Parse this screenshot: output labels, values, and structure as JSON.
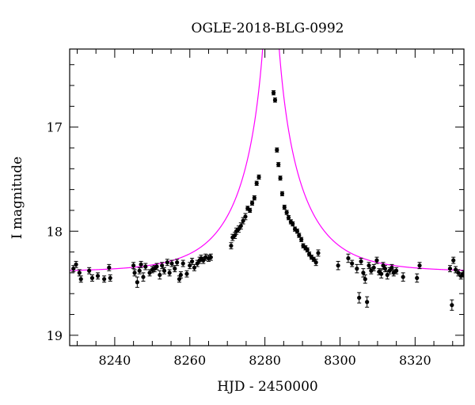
{
  "chart_data": {
    "type": "scatter",
    "title": "OGLE-2018-BLG-0992",
    "xlabel": "HJD - 2450000",
    "ylabel": "I magnitude",
    "xlim": [
      8228,
      8333
    ],
    "ylim": [
      19.1,
      16.25
    ],
    "y_inverted": true,
    "grid": false,
    "x_ticks": [
      8240,
      8260,
      8280,
      8300,
      8320
    ],
    "y_ticks": [
      17,
      18,
      19
    ],
    "colors": {
      "model": "#ff00ff",
      "points": "#000000",
      "axes": "#000000"
    },
    "model": {
      "type": "line",
      "baseline_mag": 18.39,
      "t0": 8281.6,
      "u0": 0.025,
      "tE": 16
    },
    "series": [
      {
        "x": [
          8229.0,
          8229.7,
          8230.6,
          8231.0,
          8233.2,
          8234.0,
          8235.5,
          8237.2,
          8238.5,
          8238.8,
          8245.0,
          8245.3,
          8246.0,
          8246.6,
          8247.0,
          8247.6,
          8248.2,
          8249.3,
          8250.0,
          8250.6,
          8251.2,
          8252.0,
          8252.6,
          8253.2,
          8254.0,
          8254.6,
          8255.2,
          8256.0,
          8256.6,
          8257.2,
          8257.6,
          8258.2,
          8259.2,
          8260.0,
          8260.6,
          8261.2,
          8262.0,
          8262.6,
          8263.0,
          8263.6,
          8264.2,
          8265.0,
          8265.6,
          8271.0,
          8271.4,
          8272.0,
          8272.4,
          8273.0,
          8273.6,
          8274.2,
          8274.8,
          8275.4,
          8276.0,
          8276.6,
          8277.2,
          8277.8,
          8278.4,
          8282.3,
          8282.7,
          8283.2,
          8283.6,
          8284.1,
          8284.6,
          8285.2,
          8285.8,
          8286.3,
          8286.9,
          8287.4,
          8288.0,
          8288.6,
          8289.1,
          8289.7,
          8290.2,
          8290.8,
          8291.3,
          8291.8,
          8292.4,
          8293.0,
          8293.6,
          8294.2,
          8299.5,
          8302.2,
          8303.2,
          8304.5,
          8305.1,
          8305.6,
          8306.2,
          8306.7,
          8307.2,
          8307.7,
          8308.3,
          8309.0,
          8309.8,
          8310.4,
          8311.0,
          8311.5,
          8312.0,
          8312.6,
          8313.2,
          8313.8,
          8314.3,
          8315.0,
          8316.8,
          8320.5,
          8321.2,
          8329.3,
          8329.8,
          8330.2,
          8330.8,
          8331.5,
          8332.2,
          8332.8
        ],
        "y": [
          18.36,
          18.32,
          18.4,
          18.46,
          18.38,
          18.45,
          18.43,
          18.46,
          18.35,
          18.45,
          18.33,
          18.4,
          18.49,
          18.38,
          18.32,
          18.44,
          18.34,
          18.4,
          18.37,
          18.36,
          18.34,
          18.42,
          18.33,
          18.38,
          18.3,
          18.4,
          18.31,
          18.36,
          18.3,
          18.46,
          18.42,
          18.31,
          18.41,
          18.33,
          18.29,
          18.35,
          18.31,
          18.28,
          18.26,
          18.28,
          18.25,
          18.26,
          18.25,
          18.14,
          18.06,
          18.04,
          18.0,
          17.98,
          17.95,
          17.9,
          17.86,
          17.78,
          17.8,
          17.73,
          17.68,
          17.54,
          17.48,
          16.67,
          16.74,
          17.22,
          17.36,
          17.49,
          17.64,
          17.77,
          17.82,
          17.87,
          17.91,
          17.93,
          17.98,
          18.0,
          18.04,
          18.08,
          18.14,
          18.16,
          18.18,
          18.22,
          18.25,
          18.27,
          18.3,
          18.21,
          18.33,
          18.26,
          18.31,
          18.36,
          18.64,
          18.29,
          18.4,
          18.46,
          18.68,
          18.33,
          18.38,
          18.35,
          18.28,
          18.39,
          18.41,
          18.33,
          18.36,
          18.42,
          18.38,
          18.35,
          18.4,
          18.38,
          18.44,
          18.45,
          18.33,
          18.36,
          18.71,
          18.28,
          18.37,
          18.4,
          18.43,
          18.41
        ],
        "err": [
          0.03,
          0.03,
          0.03,
          0.03,
          0.03,
          0.03,
          0.03,
          0.03,
          0.03,
          0.03,
          0.03,
          0.03,
          0.05,
          0.03,
          0.03,
          0.04,
          0.03,
          0.03,
          0.03,
          0.03,
          0.03,
          0.04,
          0.03,
          0.03,
          0.03,
          0.03,
          0.03,
          0.03,
          0.03,
          0.03,
          0.03,
          0.03,
          0.03,
          0.03,
          0.03,
          0.03,
          0.03,
          0.03,
          0.03,
          0.03,
          0.03,
          0.03,
          0.03,
          0.03,
          0.03,
          0.03,
          0.03,
          0.03,
          0.03,
          0.03,
          0.03,
          0.02,
          0.02,
          0.02,
          0.02,
          0.02,
          0.02,
          0.02,
          0.02,
          0.02,
          0.02,
          0.02,
          0.02,
          0.02,
          0.02,
          0.02,
          0.02,
          0.02,
          0.02,
          0.02,
          0.02,
          0.02,
          0.02,
          0.02,
          0.02,
          0.02,
          0.02,
          0.02,
          0.03,
          0.03,
          0.04,
          0.04,
          0.03,
          0.04,
          0.05,
          0.03,
          0.04,
          0.04,
          0.05,
          0.03,
          0.03,
          0.03,
          0.03,
          0.03,
          0.04,
          0.03,
          0.03,
          0.04,
          0.03,
          0.03,
          0.03,
          0.03,
          0.04,
          0.04,
          0.03,
          0.03,
          0.05,
          0.03,
          0.03,
          0.03,
          0.03,
          0.03
        ]
      }
    ]
  }
}
